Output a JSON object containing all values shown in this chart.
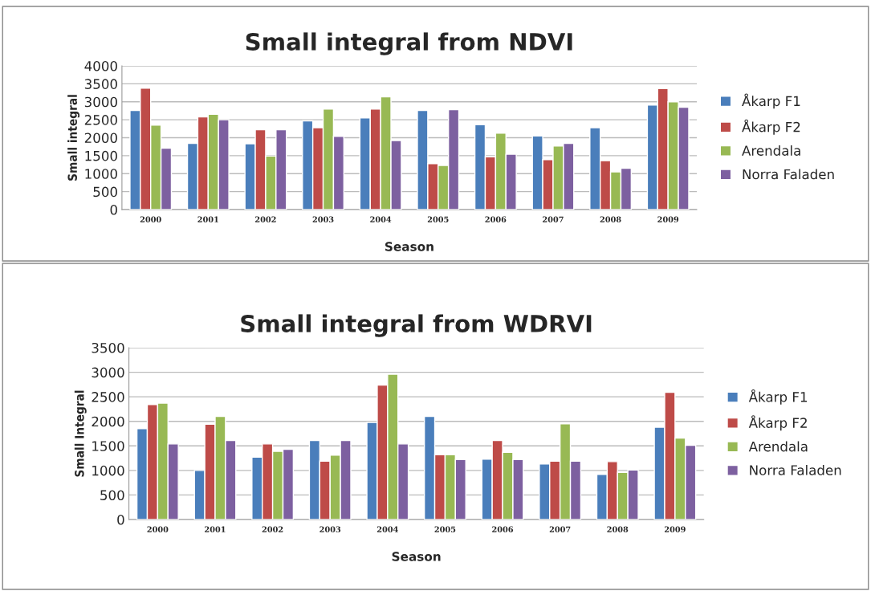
{
  "chart_data": [
    {
      "type": "bar",
      "title": "Small integral from NDVI",
      "xlabel": "Season",
      "ylabel": "Small integral",
      "categories": [
        "2000",
        "2001",
        "2002",
        "2003",
        "2004",
        "2005",
        "2006",
        "2007",
        "2008",
        "2009"
      ],
      "series": [
        {
          "name": "Åkarp F1",
          "color": "#4a7ebb",
          "values": [
            2760,
            1840,
            1830,
            2470,
            2550,
            2760,
            2360,
            2050,
            2280,
            2910
          ]
        },
        {
          "name": "Åkarp F2",
          "color": "#be4b48",
          "values": [
            3380,
            2580,
            2220,
            2280,
            2800,
            1280,
            1470,
            1390,
            1360,
            3370
          ]
        },
        {
          "name": "Arendala",
          "color": "#98b954",
          "values": [
            2350,
            2650,
            1490,
            2800,
            3140,
            1230,
            2130,
            1770,
            1050,
            3000
          ]
        },
        {
          "name": "Norra Faladen",
          "color": "#7d60a0",
          "values": [
            1710,
            2500,
            2220,
            2040,
            1920,
            2780,
            1540,
            1840,
            1150,
            2850
          ]
        }
      ],
      "ylim": [
        0,
        4000
      ],
      "yticks": [
        0,
        500,
        1000,
        1500,
        2000,
        2500,
        3000,
        3500,
        4000
      ],
      "grid": "y",
      "legend": "right"
    },
    {
      "type": "bar",
      "title": "Small integral from WDRVI",
      "xlabel": "Season",
      "ylabel": "Small Integral",
      "categories": [
        "2000",
        "2001",
        "2002",
        "2003",
        "2004",
        "2005",
        "2006",
        "2007",
        "2008",
        "2009"
      ],
      "series": [
        {
          "name": "Åkarp F1",
          "color": "#4a7ebb",
          "values": [
            1850,
            1000,
            1270,
            1610,
            1980,
            2100,
            1230,
            1130,
            920,
            1880
          ]
        },
        {
          "name": "Åkarp F2",
          "color": "#be4b48",
          "values": [
            2340,
            1940,
            1540,
            1190,
            2740,
            1320,
            1610,
            1190,
            1180,
            2590
          ]
        },
        {
          "name": "Arendala",
          "color": "#98b954",
          "values": [
            2370,
            2100,
            1390,
            1310,
            2960,
            1320,
            1370,
            1950,
            960,
            1660
          ]
        },
        {
          "name": "Norra Faladen",
          "color": "#7d60a0",
          "values": [
            1540,
            1610,
            1430,
            1610,
            1540,
            1220,
            1220,
            1190,
            1010,
            1510
          ]
        }
      ],
      "ylim": [
        0,
        3500
      ],
      "yticks": [
        0,
        500,
        1000,
        1500,
        2000,
        2500,
        3000,
        3500
      ],
      "grid": "y",
      "legend": "right"
    }
  ]
}
